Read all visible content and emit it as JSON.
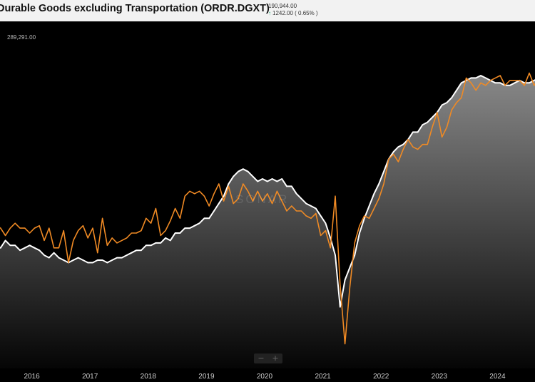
{
  "header": {
    "title": "Durable Goods excluding Transportation (ORDR.DGXT)",
    "last_value": "190,944.00",
    "change": "1242.00 ( 0.65% )"
  },
  "max_label": "289,291.00",
  "watermark": "SONAR",
  "zoom": {
    "minus": "−",
    "plus": "+"
  },
  "colors": {
    "seasonal_line": "#f08a24",
    "trend_line": "#ffffff",
    "up_arrow": "#19a974",
    "background": "#000000"
  },
  "chart_data": {
    "type": "line",
    "x_start": "2015-06",
    "x_step": "month",
    "xlim": [
      "2015-06",
      "2024-07"
    ],
    "x_ticks": [
      "2016",
      "2017",
      "2018",
      "2019",
      "2020",
      "2021",
      "2022",
      "2023",
      "2024"
    ],
    "ylim": [
      155000,
      296000
    ],
    "grid": false,
    "legend": "none",
    "series": [
      {
        "style": "area",
        "values": [
          205000,
          204000,
          207000,
          205000,
          205000,
          203000,
          204000,
          205000,
          204000,
          203000,
          201000,
          200000,
          202000,
          200000,
          199000,
          198000,
          199000,
          200000,
          199000,
          198000,
          198000,
          199000,
          199000,
          198000,
          199000,
          200000,
          200000,
          201000,
          202000,
          203000,
          203000,
          205000,
          205000,
          206000,
          206000,
          208000,
          207000,
          210000,
          210000,
          212000,
          212000,
          213000,
          214000,
          216000,
          216000,
          219000,
          222000,
          225000,
          230000,
          233000,
          235000,
          236000,
          235000,
          233000,
          231000,
          232000,
          231000,
          232000,
          231000,
          232000,
          229000,
          229000,
          226000,
          224000,
          222000,
          221000,
          220000,
          217000,
          214000,
          208000,
          201000,
          180000,
          191000,
          196000,
          201000,
          210000,
          216000,
          221000,
          226000,
          230000,
          235000,
          240000,
          243000,
          245000,
          246000,
          248000,
          251000,
          251000,
          254000,
          255000,
          257000,
          259000,
          262000,
          263000,
          265000,
          268000,
          271000,
          272000,
          273000,
          273000,
          274000,
          273000,
          272000,
          271000,
          271000,
          270000,
          270000,
          271000,
          272000,
          271000,
          271000,
          272000,
          273000,
          274000,
          274000,
          275000,
          275000,
          274000,
          276000,
          275000,
          274000,
          275000,
          275000,
          276000,
          275000,
          275000,
          274000,
          275000,
          275000,
          275000
        ]
      },
      {
        "style": "line",
        "values": [
          213000,
          212000,
          209000,
          212000,
          214000,
          212000,
          212000,
          210000,
          212000,
          213000,
          207000,
          212000,
          204000,
          204000,
          211000,
          198000,
          207000,
          211000,
          213000,
          208000,
          212000,
          202000,
          216000,
          205000,
          208000,
          206000,
          207000,
          208000,
          210000,
          210000,
          211000,
          216000,
          214000,
          220000,
          209000,
          211000,
          215000,
          220000,
          216000,
          225000,
          227000,
          226000,
          227000,
          225000,
          221000,
          226000,
          230000,
          223000,
          229000,
          222000,
          224000,
          230000,
          227000,
          223000,
          227000,
          223000,
          226000,
          222000,
          227000,
          223000,
          219000,
          221000,
          219000,
          219000,
          217000,
          216000,
          218000,
          209000,
          211000,
          204000,
          225000,
          189000,
          165000,
          188000,
          206000,
          213000,
          217000,
          216000,
          220000,
          224000,
          230000,
          240000,
          242000,
          239000,
          244000,
          248000,
          245000,
          244000,
          246000,
          246000,
          253000,
          259000,
          249000,
          253000,
          260000,
          263000,
          265000,
          273000,
          271000,
          268000,
          271000,
          270000,
          272000,
          273000,
          274000,
          270000,
          272000,
          272000,
          272000,
          270000,
          275000,
          270000,
          273000,
          272000,
          276000,
          277000,
          280000,
          283000,
          277000,
          280000,
          278000,
          281000,
          288000,
          281000,
          278000,
          271000,
          272000,
          276000,
          274000,
          260000,
          280000
        ]
      }
    ]
  }
}
